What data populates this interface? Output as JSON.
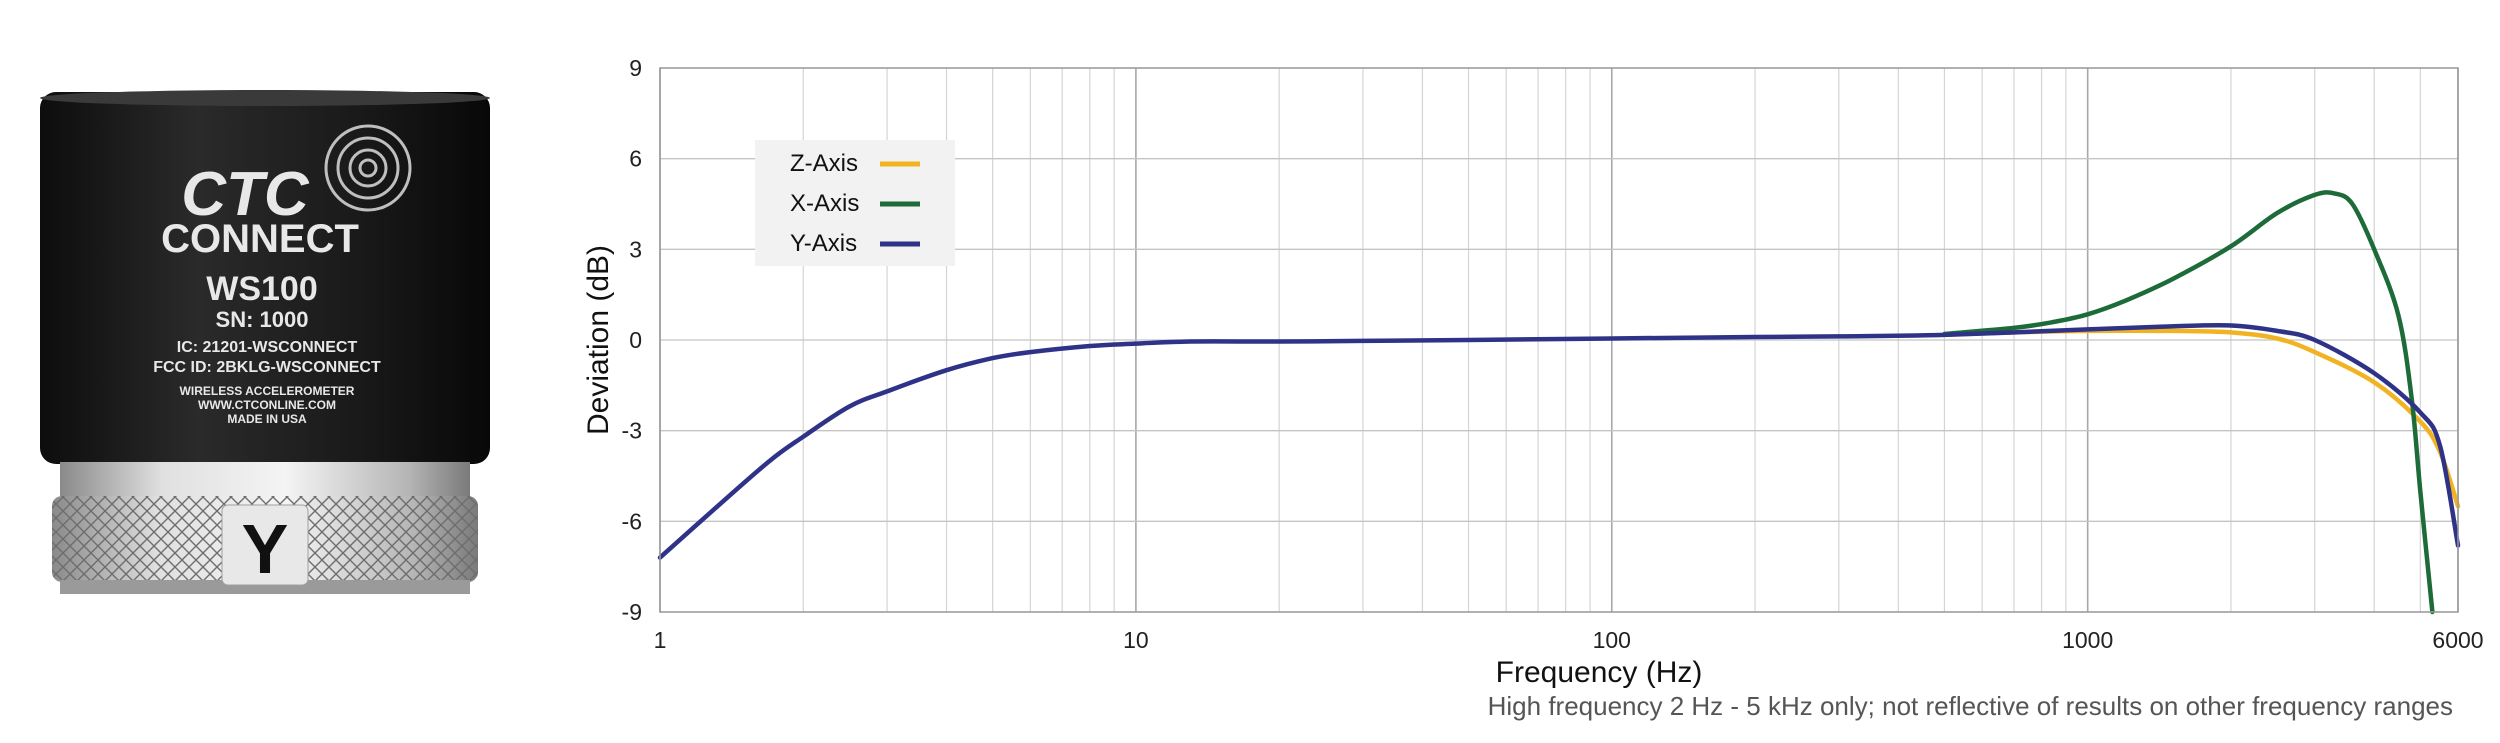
{
  "product": {
    "logo_top": "CTC",
    "logo_bottom": "CONNECT",
    "model": "WS100",
    "serial": "SN: 1000",
    "ic": "IC: 21201-WSCONNECT",
    "fcc": "FCC ID: 2BKLG-WSCONNECT",
    "desc": "WIRELESS ACCELEROMETER",
    "url": "WWW.CTCONLINE.COM",
    "origin": "MADE IN USA",
    "axis_mark": "Y"
  },
  "chart_data": {
    "type": "line",
    "xscale": "log",
    "xlim": [
      1,
      6000
    ],
    "ylim": [
      -9,
      9
    ],
    "xticks": [
      1,
      10,
      100,
      1000,
      6000
    ],
    "xtick_labels": [
      "1",
      "10",
      "100",
      "1000",
      "6000"
    ],
    "yticks": [
      9,
      6,
      3,
      0,
      -3,
      -6,
      -9
    ],
    "ytick_labels": [
      "9",
      "6",
      "3",
      "0",
      "-3",
      "-6",
      "-9"
    ],
    "xlabel": "Frequency (Hz)",
    "ylabel": "Deviation (dB)",
    "grid": true,
    "legend_position": "top-left",
    "footnote": "High frequency 2 Hz - 5 kHz only; not reflective of results on other frequency ranges",
    "series": [
      {
        "name": "Z-Axis",
        "color": "#f2b322",
        "x": [
          500,
          700,
          1000,
          1500,
          2000,
          2500,
          3000,
          4000,
          5000,
          5500,
          6000
        ],
        "y": [
          0.18,
          0.25,
          0.3,
          0.3,
          0.25,
          0.05,
          -0.4,
          -1.4,
          -2.7,
          -3.7,
          -5.5
        ]
      },
      {
        "name": "X-Axis",
        "color": "#1e6b3a",
        "x": [
          500,
          700,
          850,
          1000,
          1200,
          1500,
          2000,
          2500,
          3000,
          3300,
          3600,
          4000,
          4500,
          4800,
          5000,
          5300
        ],
        "y": [
          0.2,
          0.4,
          0.6,
          0.85,
          1.3,
          2.0,
          3.1,
          4.2,
          4.8,
          4.85,
          4.5,
          3.0,
          0.8,
          -2.0,
          -5.0,
          -9.0
        ]
      },
      {
        "name": "Y-Axis",
        "color": "#2e3388",
        "x": [
          1,
          1.3,
          1.7,
          2,
          2.5,
          3,
          4,
          5,
          6,
          8,
          10,
          13,
          20,
          30,
          50,
          100,
          200,
          300,
          500,
          1000,
          1500,
          2000,
          2500,
          3000,
          4000,
          5000,
          5500,
          6000
        ],
        "y": [
          -7.2,
          -5.6,
          -4.0,
          -3.2,
          -2.2,
          -1.7,
          -1.0,
          -0.6,
          -0.4,
          -0.2,
          -0.12,
          -0.05,
          -0.05,
          -0.03,
          0.0,
          0.05,
          0.1,
          0.12,
          0.17,
          0.35,
          0.45,
          0.48,
          0.3,
          0.0,
          -1.1,
          -2.4,
          -3.5,
          -6.8
        ]
      }
    ]
  }
}
